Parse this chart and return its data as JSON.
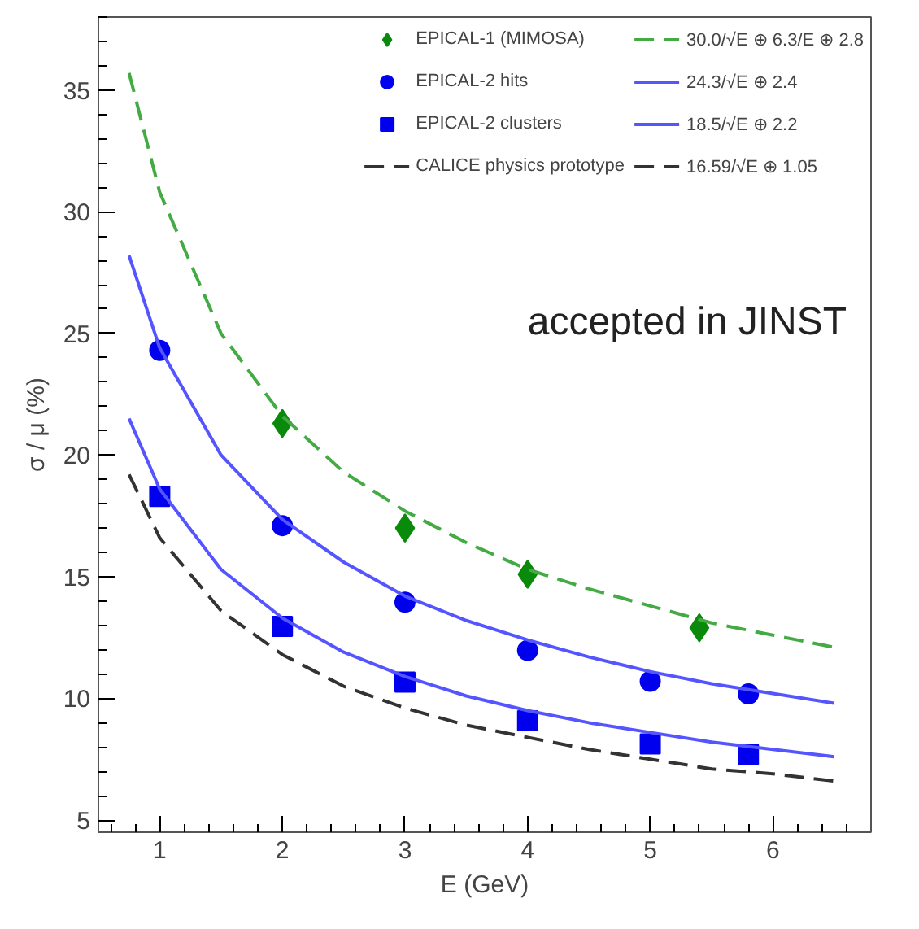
{
  "chart_data": {
    "type": "scatter",
    "xlabel": "E (GeV)",
    "ylabel": "σ / μ (%)",
    "xlim": [
      0.5,
      6.8
    ],
    "ylim": [
      4.5,
      38
    ],
    "xticks": [
      1,
      2,
      3,
      4,
      5,
      6
    ],
    "yticks": [
      5,
      10,
      15,
      20,
      25,
      30,
      35
    ],
    "grid": false,
    "legend": "top right",
    "annotations": [
      "accepted in JINST",
      "16.59/√E ⊕ 1.05"
    ],
    "series": [
      {
        "name": "EPICAL-1 (MIMOSA)",
        "marker": "diamond",
        "color": "#0a8a0a",
        "x": [
          2,
          3,
          4,
          5.4
        ],
        "values": [
          21.3,
          17.0,
          15.1,
          12.9
        ]
      },
      {
        "name": "EPICAL-2 hits",
        "marker": "circle",
        "color": "#0000ee",
        "x": [
          1,
          2,
          3,
          4,
          5,
          5.8
        ],
        "values": [
          24.3,
          17.1,
          13.95,
          11.97,
          10.7,
          10.18
        ]
      },
      {
        "name": "EPICAL-2 clusters",
        "marker": "square",
        "color": "#0000ee",
        "x": [
          1,
          2,
          3,
          4,
          5,
          5.8
        ],
        "values": [
          18.3,
          12.96,
          10.67,
          9.08,
          8.13,
          7.69
        ]
      },
      {
        "name": "CALICE physics prototype",
        "type": "line",
        "marker": "none",
        "line_style": "dashed",
        "color": "#333333",
        "x": [
          0.75,
          1,
          1.5,
          2,
          2.5,
          3,
          3.5,
          4,
          4.5,
          5,
          5.5,
          6,
          6.5
        ],
        "values": [
          19.2,
          16.6,
          13.6,
          11.8,
          10.5,
          9.6,
          8.9,
          8.4,
          7.9,
          7.5,
          7.1,
          6.9,
          6.6
        ]
      },
      {
        "name": "30.0/√E ⊕ 6.3/E ⊕ 2.8",
        "type": "line",
        "marker": "none",
        "line_style": "dashed",
        "color": "#44aa44",
        "x": [
          0.75,
          1,
          1.5,
          2,
          2.5,
          3,
          3.5,
          4,
          4.5,
          5,
          5.5,
          6,
          6.5
        ],
        "values": [
          35.7,
          30.8,
          25.0,
          21.6,
          19.3,
          17.7,
          16.4,
          15.3,
          14.5,
          13.8,
          13.1,
          12.6,
          12.1
        ]
      },
      {
        "name": "24.3/√E ⊕ 2.4",
        "type": "line",
        "marker": "none",
        "line_style": "solid",
        "color": "#5555ff",
        "x": [
          0.75,
          1,
          1.5,
          2,
          2.5,
          3,
          3.5,
          4,
          4.5,
          5,
          5.5,
          6,
          6.5
        ],
        "values": [
          28.2,
          24.4,
          20.0,
          17.35,
          15.6,
          14.2,
          13.2,
          12.4,
          11.7,
          11.1,
          10.6,
          10.2,
          9.8
        ]
      },
      {
        "name": "18.5/√E ⊕ 2.2",
        "type": "line",
        "marker": "none",
        "line_style": "solid",
        "color": "#5555ff",
        "x": [
          0.75,
          1,
          1.5,
          2,
          2.5,
          3,
          3.5,
          4,
          4.5,
          5,
          5.5,
          6,
          6.5
        ],
        "values": [
          21.5,
          18.6,
          15.3,
          13.3,
          11.9,
          10.9,
          10.1,
          9.5,
          9.0,
          8.6,
          8.2,
          7.9,
          7.6
        ]
      }
    ]
  }
}
